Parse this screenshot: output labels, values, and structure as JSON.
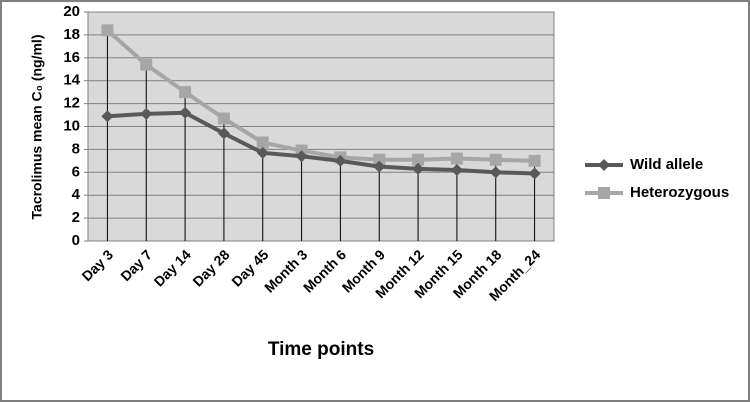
{
  "chart_data": {
    "type": "line",
    "x_label": "Time points",
    "y_label": "Tacrolimus mean C₀ (ng/ml)",
    "categories": [
      "Day 3",
      "Day 7",
      "Day 14",
      "Day 28",
      "Day 45",
      "Month 3",
      "Month 6",
      "Month 9",
      "Month 12",
      "Month 15",
      "Month 18",
      "Month_24"
    ],
    "series": [
      {
        "name": "Wild allele",
        "color": "#595959",
        "marker": "diamond",
        "values": [
          10.9,
          11.1,
          11.2,
          9.4,
          7.7,
          7.4,
          7.0,
          6.5,
          6.3,
          6.2,
          6.0,
          5.9
        ]
      },
      {
        "name": "Heterozygous",
        "color": "#a6a6a6",
        "marker": "square",
        "values": [
          18.4,
          15.4,
          13.0,
          10.7,
          8.6,
          7.9,
          7.3,
          7.1,
          7.1,
          7.2,
          7.1,
          7.0
        ]
      }
    ],
    "ylim": [
      0,
      20
    ],
    "yticks": [
      0,
      2,
      4,
      6,
      8,
      10,
      12,
      14,
      16,
      18,
      20
    ],
    "grid": true,
    "drop_lines": true,
    "legend": "right"
  }
}
